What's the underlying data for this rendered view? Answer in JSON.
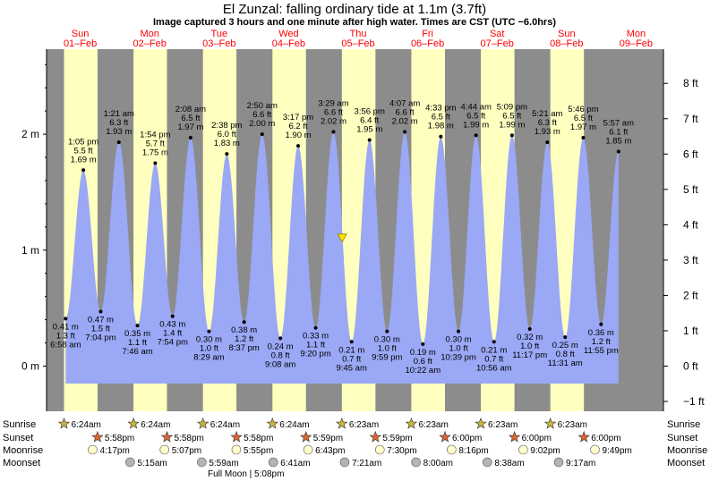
{
  "title": "El Zunzal: falling  ordinary tide at 1.1m (3.7ft)",
  "subtitle": "Image captured 3 hours and one minute after high water. Times are CST (UTC −6.0hrs)",
  "colors": {
    "night": "#8c8c8c",
    "day": "#ffffc0",
    "tide_fill": "#9aa8f5",
    "day_header": "#ff0000",
    "sun_star": "#c8b440",
    "sunset_star": "#dd6633",
    "moonrise": "#ffffcc",
    "moonset": "#b4b4b4"
  },
  "chart_data": {
    "type": "area",
    "title": "El Zunzal: falling  ordinary tide at 1.1m (3.7ft)",
    "ylabel_left_unit": "m",
    "ylabel_right_unit": "ft",
    "ylim_m": [
      -0.68,
      2.76
    ],
    "left_ticks": [
      "0 m",
      "1 m",
      "2 m"
    ],
    "right_ticks": [
      "−1 ft",
      "0 ft",
      "1 ft",
      "2 ft",
      "3 ft",
      "4 ft",
      "5 ft",
      "6 ft",
      "7 ft",
      "8 ft"
    ],
    "days": [
      {
        "name": "Sun",
        "date": "01–Feb"
      },
      {
        "name": "Mon",
        "date": "02–Feb"
      },
      {
        "name": "Tue",
        "date": "03–Feb"
      },
      {
        "name": "Wed",
        "date": "04–Feb"
      },
      {
        "name": "Thu",
        "date": "05–Feb"
      },
      {
        "name": "Fri",
        "date": "06–Feb"
      },
      {
        "name": "Sat",
        "date": "07–Feb"
      },
      {
        "name": "Sun",
        "date": "08–Feb"
      },
      {
        "name": "Mon",
        "date": "09–Feb"
      }
    ],
    "tides": [
      {
        "time": "6:58 am",
        "ft": "1.3 ft",
        "m": 0.41,
        "type": "low"
      },
      {
        "time": "1:05 pm",
        "ft": "5.5 ft",
        "m": 1.69,
        "type": "high"
      },
      {
        "time": "7:04 pm",
        "ft": "1.5 ft",
        "m": 0.47,
        "type": "low"
      },
      {
        "time": "1:21 am",
        "ft": "6.3 ft",
        "m": 1.93,
        "type": "high"
      },
      {
        "time": "7:46 am",
        "ft": "1.1 ft",
        "m": 0.35,
        "type": "low"
      },
      {
        "time": "1:54 pm",
        "ft": "5.7 ft",
        "m": 1.75,
        "type": "high"
      },
      {
        "time": "7:54 pm",
        "ft": "1.4 ft",
        "m": 0.43,
        "type": "low"
      },
      {
        "time": "2:08 am",
        "ft": "6.5 ft",
        "m": 1.97,
        "type": "high"
      },
      {
        "time": "8:29 am",
        "ft": "1.0 ft",
        "m": 0.3,
        "type": "low"
      },
      {
        "time": "2:38 pm",
        "ft": "6.0 ft",
        "m": 1.83,
        "type": "high"
      },
      {
        "time": "8:37 pm",
        "ft": "1.2 ft",
        "m": 0.38,
        "type": "low"
      },
      {
        "time": "2:50 am",
        "ft": "6.6 ft",
        "m": 2.0,
        "type": "high"
      },
      {
        "time": "9:08 am",
        "ft": "0.8 ft",
        "m": 0.24,
        "type": "low"
      },
      {
        "time": "3:17 pm",
        "ft": "6.2 ft",
        "m": 1.9,
        "type": "high"
      },
      {
        "time": "9:20 pm",
        "ft": "1.1 ft",
        "m": 0.33,
        "type": "low"
      },
      {
        "time": "3:29 am",
        "ft": "6.6 ft",
        "m": 2.02,
        "type": "high"
      },
      {
        "time": "9:45 am",
        "ft": "0.7 ft",
        "m": 0.21,
        "type": "low"
      },
      {
        "time": "3:56 pm",
        "ft": "6.4 ft",
        "m": 1.95,
        "type": "high"
      },
      {
        "time": "9:59 pm",
        "ft": "1.0 ft",
        "m": 0.3,
        "type": "low"
      },
      {
        "time": "4:07 am",
        "ft": "6.6 ft",
        "m": 2.02,
        "type": "high"
      },
      {
        "time": "10:22 am",
        "ft": "0.6 ft",
        "m": 0.19,
        "type": "low"
      },
      {
        "time": "4:33 pm",
        "ft": "6.5 ft",
        "m": 1.98,
        "type": "high"
      },
      {
        "time": "10:39 pm",
        "ft": "1.0 ft",
        "m": 0.3,
        "type": "low"
      },
      {
        "time": "4:44 am",
        "ft": "6.5 ft",
        "m": 1.99,
        "type": "high"
      },
      {
        "time": "10:56 am",
        "ft": "0.7 ft",
        "m": 0.21,
        "type": "low"
      },
      {
        "time": "5:09 pm",
        "ft": "6.5 ft",
        "m": 1.99,
        "type": "high"
      },
      {
        "time": "11:17 pm",
        "ft": "1.0 ft",
        "m": 0.32,
        "type": "low"
      },
      {
        "time": "5:21 am",
        "ft": "6.3 ft",
        "m": 1.93,
        "type": "high"
      },
      {
        "time": "11:31 am",
        "ft": "0.8 ft",
        "m": 0.25,
        "type": "low"
      },
      {
        "time": "5:46 pm",
        "ft": "6.5 ft",
        "m": 1.97,
        "type": "high"
      },
      {
        "time": "11:55 pm",
        "ft": "1.2 ft",
        "m": 0.36,
        "type": "low"
      },
      {
        "time": "5:57 am",
        "ft": "6.1 ft",
        "m": 1.85,
        "type": "high"
      }
    ],
    "current_marker": {
      "m": 1.1
    }
  },
  "rows": {
    "sunrise_label": "Sunrise",
    "sunset_label": "Sunset",
    "moonrise_label": "Moonrise",
    "moonset_label": "Moonset",
    "sunrise": [
      "6:24am",
      "6:24am",
      "6:24am",
      "6:24am",
      "6:23am",
      "6:23am",
      "6:23am",
      "6:23am"
    ],
    "sunset": [
      "5:58pm",
      "5:58pm",
      "5:58pm",
      "5:59pm",
      "5:59pm",
      "6:00pm",
      "6:00pm",
      "6:00pm"
    ],
    "moonrise": [
      "4:17pm",
      "5:07pm",
      "5:55pm",
      "6:43pm",
      "7:30pm",
      "8:16pm",
      "9:02pm",
      "9:49pm"
    ],
    "moonset": [
      "5:15am",
      "5:59am",
      "6:41am",
      "7:21am",
      "8:00am",
      "8:38am",
      "9:17am"
    ],
    "full_moon": "Full Moon",
    "full_moon_time": "5:08pm"
  }
}
